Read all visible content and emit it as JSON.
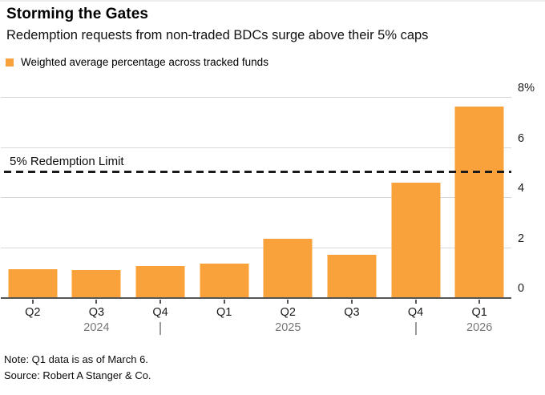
{
  "header": {
    "title": "Storming the Gates",
    "subtitle": "Redemption requests from non-traded BDCs surge above their 5% caps"
  },
  "legend": {
    "swatch_color": "#F9A23B",
    "label": "Weighted average percentage across tracked funds"
  },
  "chart_data": {
    "type": "bar",
    "title": "Storming the Gates",
    "subtitle": "Redemption requests from non-traded BDCs surge above their 5% caps",
    "series_name": "Weighted average percentage across tracked funds",
    "categories": [
      "Q2",
      "Q3",
      "Q4",
      "Q1",
      "Q2",
      "Q3",
      "Q4",
      "Q1"
    ],
    "year_row": [
      "",
      "2024",
      "|",
      "",
      "2025",
      "",
      "|",
      "2026"
    ],
    "values": [
      1.15,
      1.13,
      1.27,
      1.37,
      2.37,
      1.74,
      4.62,
      7.66
    ],
    "unit": "%",
    "ylim": [
      0,
      8
    ],
    "y_ticks": [
      0,
      2,
      4,
      6,
      8
    ],
    "y_tick_labels": [
      "0",
      "2",
      "4",
      "6",
      "8%"
    ],
    "grid": true,
    "legend_position": "top-left",
    "bar_color": "#F9A23B",
    "reference_line": {
      "value": 5,
      "label": "5% Redemption Limit"
    }
  },
  "notes": {
    "note": "Note: Q1 data is as of March 6.",
    "source": "Source: Robert A Stanger & Co."
  }
}
